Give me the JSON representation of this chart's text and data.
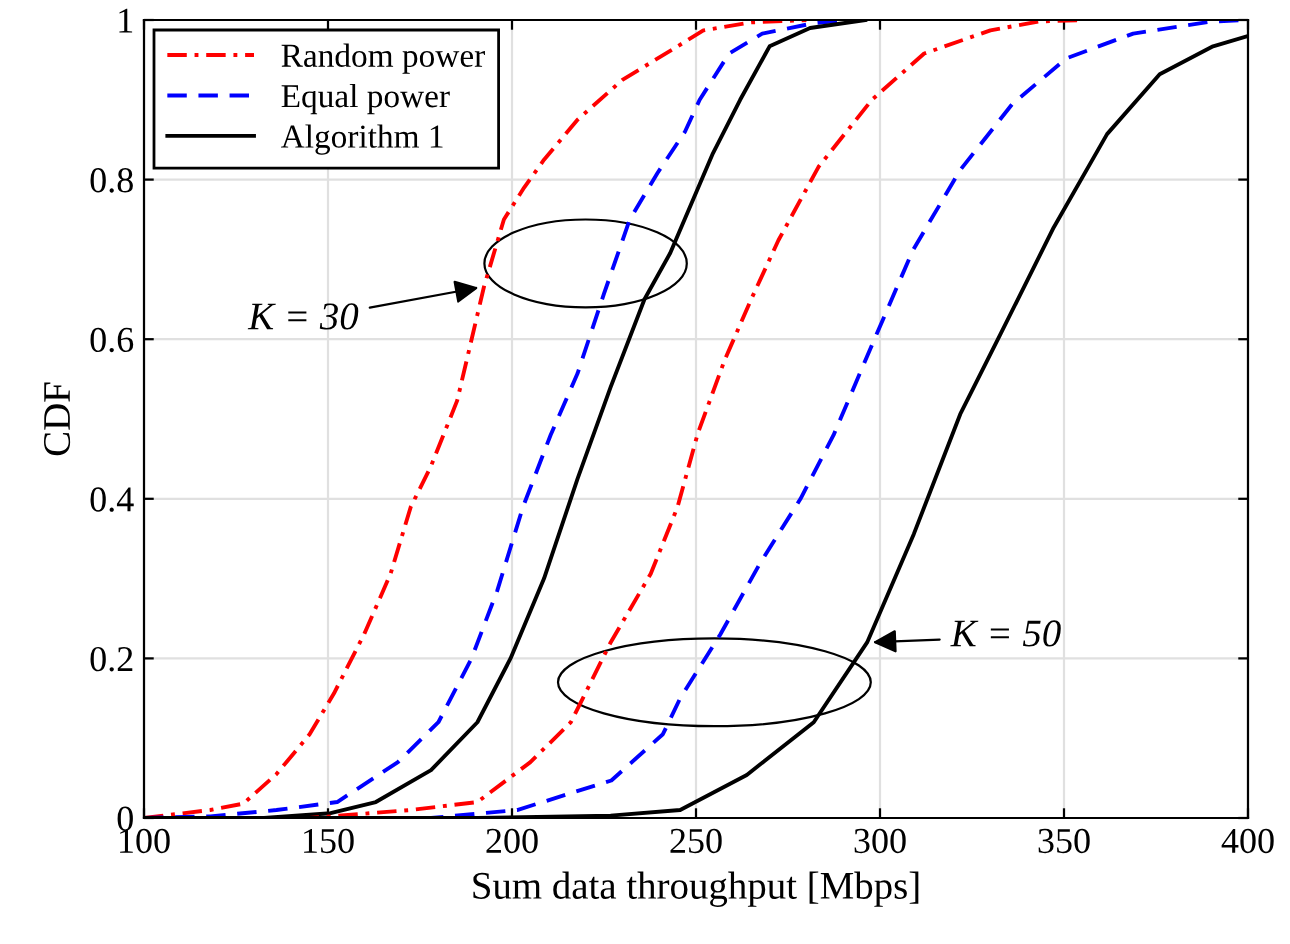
{
  "chart_data": {
    "type": "line",
    "xlabel": "Sum data throughput [Mbps]",
    "ylabel": "CDF",
    "xlim": [
      100,
      400
    ],
    "ylim": [
      0,
      1
    ],
    "xticks": [
      100,
      150,
      200,
      250,
      300,
      350,
      400
    ],
    "yticks": [
      0,
      0.2,
      0.4,
      0.6,
      0.8,
      1
    ],
    "grid": true,
    "legend": "top left",
    "annotations": [
      {
        "text": "K = 30",
        "x": 192.4,
        "y": 0.666
      },
      {
        "text": "K = 50",
        "x": 296.5,
        "y": 0.22
      }
    ],
    "series": [
      {
        "name": "Random power",
        "color": "#ff0000",
        "line_style": "dashdot",
        "x": [
          100,
          118,
          127,
          136,
          145,
          151.6,
          159.8,
          167,
          172.5,
          177.9,
          185.1,
          192.4,
          197.8,
          203.3,
          208.7,
          217.8,
          230,
          245,
          252,
          265,
          280
        ],
        "values": [
          0,
          0.01,
          0.018,
          0.055,
          0.105,
          0.156,
          0.23,
          0.306,
          0.39,
          0.44,
          0.523,
          0.666,
          0.75,
          0.79,
          0.825,
          0.875,
          0.925,
          0.967,
          0.987,
          0.997,
          1
        ]
      },
      {
        "name": "Equal power",
        "color": "#0000ff",
        "line_style": "dashed",
        "x": [
          100,
          118,
          136,
          152.5,
          169,
          180,
          189,
          196,
          203,
          210.5,
          217.8,
          225,
          232,
          239.5,
          247,
          251,
          259,
          268,
          282,
          291
        ],
        "values": [
          0,
          0.002,
          0.01,
          0.02,
          0.07,
          0.12,
          0.2,
          0.285,
          0.39,
          0.48,
          0.557,
          0.657,
          0.75,
          0.808,
          0.86,
          0.9,
          0.958,
          0.983,
          0.996,
          1
        ]
      },
      {
        "name": "Algorithm 1",
        "color": "#000000",
        "line_style": "solid",
        "x": [
          100,
          132.6,
          150.7,
          163,
          178,
          190.6,
          199.6,
          208.7,
          217.8,
          226.8,
          236,
          243,
          254.6,
          262,
          270,
          281,
          296
        ],
        "values": [
          0,
          0,
          0.006,
          0.02,
          0.06,
          0.12,
          0.2,
          0.3,
          0.425,
          0.54,
          0.65,
          0.708,
          0.833,
          0.9,
          0.967,
          0.99,
          1
        ]
      },
      {
        "color": "#ff0000",
        "line_style": "dashdot",
        "x": [
          100,
          145,
          172.5,
          190.6,
          205,
          216,
          226.8,
          237.7,
          245,
          250.5,
          257.8,
          265,
          272.4,
          283.3,
          297.8,
          312,
          330,
          343,
          355
        ],
        "values": [
          0,
          0,
          0.01,
          0.02,
          0.07,
          0.12,
          0.22,
          0.306,
          0.39,
          0.482,
          0.574,
          0.65,
          0.724,
          0.816,
          0.9,
          0.958,
          0.987,
          0.998,
          1
        ]
      },
      {
        "color": "#0000ff",
        "line_style": "dashed",
        "x": [
          100,
          178,
          201.4,
          227,
          241,
          245.7,
          256.6,
          267.5,
          278.4,
          287.4,
          298.3,
          309,
          321.8,
          336,
          350.7,
          368.8,
          390,
          400
        ],
        "values": [
          0,
          0,
          0.01,
          0.047,
          0.105,
          0.15,
          0.23,
          0.32,
          0.4,
          0.48,
          0.598,
          0.712,
          0.812,
          0.895,
          0.952,
          0.983,
          0.998,
          1
        ]
      },
      {
        "color": "#000000",
        "line_style": "solid",
        "x": [
          100,
          190.6,
          226.8,
          245.7,
          263.8,
          282,
          296.5,
          309.2,
          321.8,
          332.7,
          347.2,
          361.7,
          376,
          390.5,
          400
        ],
        "values": [
          0,
          0,
          0.003,
          0.01,
          0.054,
          0.12,
          0.22,
          0.356,
          0.506,
          0.606,
          0.74,
          0.857,
          0.932,
          0.967,
          0.98
        ]
      }
    ]
  }
}
